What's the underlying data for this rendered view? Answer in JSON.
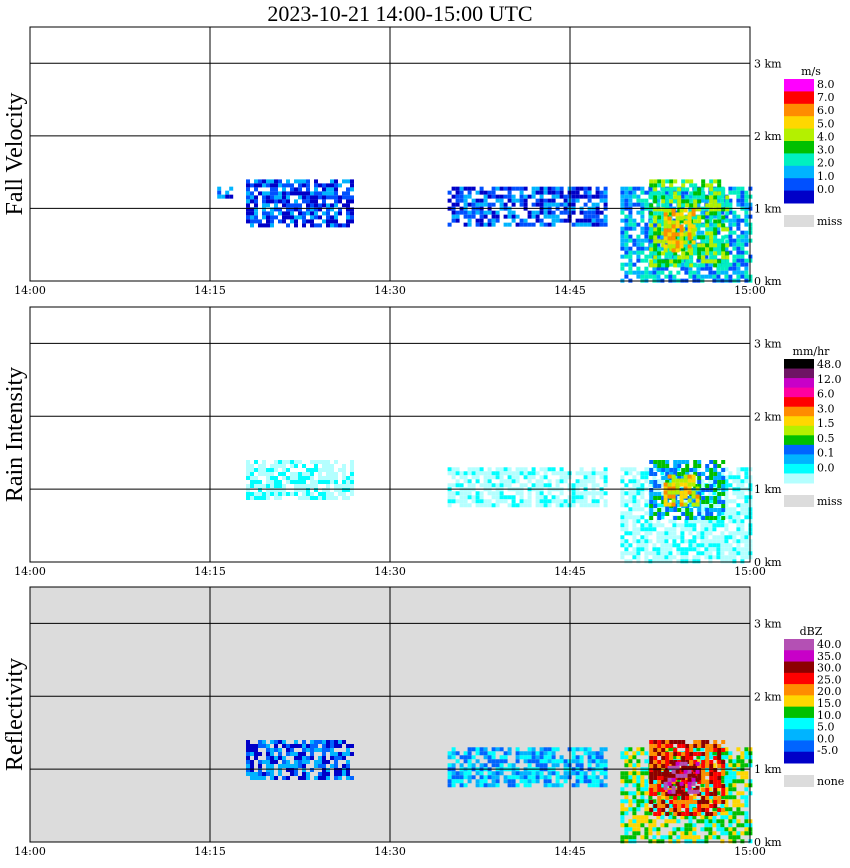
{
  "title": "2023-10-21   14:00-15:00 UTC",
  "chart_data": [
    {
      "type": "heatmap",
      "name": "fall-velocity",
      "ylabel": "Fall Velocity",
      "background": "#ffffff",
      "x_ticks": [
        "14:00",
        "14:15",
        "14:30",
        "14:45",
        "15:00"
      ],
      "y_ticks": [
        "0 km",
        "1 km",
        "2 km",
        "3 km"
      ],
      "xlim": [
        "14:00",
        "15:00"
      ],
      "ylim_km": [
        0,
        3.5
      ],
      "grid": true,
      "colorbar": {
        "unit": "m/s",
        "labels": [
          "8.0",
          "7.0",
          "6.0",
          "5.0",
          "4.0",
          "3.0",
          "2.0",
          "1.0",
          "0.0"
        ],
        "colors": [
          "#ff00ff",
          "#ff0000",
          "#ff8c00",
          "#ffd700",
          "#b4f000",
          "#00c000",
          "#00f0c0",
          "#00b4ff",
          "#0050ff",
          "#0000c8"
        ],
        "missing_label": "miss",
        "missing_color": "#dcdcdc"
      },
      "echo": [
        {
          "t0": 14.3,
          "t1": 14.45,
          "h0": 0.75,
          "h1": 1.4,
          "level": 1
        },
        {
          "t0": 14.26,
          "t1": 14.28,
          "h0": 1.15,
          "h1": 1.3,
          "level": 1
        },
        {
          "t0": 14.58,
          "t1": 14.8,
          "h0": 0.8,
          "h1": 1.3,
          "level": 1
        },
        {
          "t0": 14.82,
          "t1": 15.0,
          "h0": 0.0,
          "h1": 1.3,
          "level": 2
        },
        {
          "t0": 14.86,
          "t1": 14.97,
          "h0": 0.2,
          "h1": 1.4,
          "level": 4
        },
        {
          "t0": 14.88,
          "t1": 14.92,
          "h0": 0.4,
          "h1": 1.0,
          "level": 6
        }
      ]
    },
    {
      "type": "heatmap",
      "name": "rain-intensity",
      "ylabel": "Rain Intensity",
      "background": "#ffffff",
      "x_ticks": [
        "14:00",
        "14:15",
        "14:30",
        "14:45",
        "15:00"
      ],
      "y_ticks": [
        "0 km",
        "1 km",
        "2 km",
        "3 km"
      ],
      "xlim": [
        "14:00",
        "15:00"
      ],
      "ylim_km": [
        0,
        3.5
      ],
      "grid": true,
      "colorbar": {
        "unit": "mm/hr",
        "labels": [
          "48.0",
          "12.0",
          "6.0",
          "3.0",
          "1.5",
          "0.5",
          "0.1",
          "0.0"
        ],
        "colors": [
          "#000000",
          "#6e1464",
          "#c800c8",
          "#ff00a0",
          "#ff0000",
          "#ff8c00",
          "#ffd700",
          "#b4f000",
          "#00c000",
          "#0064ff",
          "#00b4ff",
          "#00ffff",
          "#b4ffff"
        ],
        "missing_label": "miss",
        "missing_color": "#dcdcdc"
      },
      "echo": [
        {
          "t0": 14.3,
          "t1": 14.45,
          "h0": 0.9,
          "h1": 1.4,
          "level": 0
        },
        {
          "t0": 14.58,
          "t1": 14.8,
          "h0": 0.8,
          "h1": 1.3,
          "level": 0
        },
        {
          "t0": 14.82,
          "t1": 15.0,
          "h0": 0.0,
          "h1": 1.3,
          "level": 0
        },
        {
          "t0": 14.86,
          "t1": 14.96,
          "h0": 0.6,
          "h1": 1.4,
          "level": 3
        },
        {
          "t0": 14.88,
          "t1": 14.93,
          "h0": 0.8,
          "h1": 1.2,
          "level": 6
        }
      ]
    },
    {
      "type": "heatmap",
      "name": "reflectivity",
      "ylabel": "Reflectivity",
      "background": "#dcdcdc",
      "x_ticks": [
        "14:00",
        "14:15",
        "14:30",
        "14:45",
        "15:00"
      ],
      "y_ticks": [
        "0 km",
        "1 km",
        "2 km",
        "3 km"
      ],
      "xlim": [
        "14:00",
        "15:00"
      ],
      "ylim_km": [
        0,
        3.5
      ],
      "grid": true,
      "colorbar": {
        "unit": "dBZ",
        "labels": [
          "40.0",
          "35.0",
          "30.0",
          "25.0",
          "20.0",
          "15.0",
          "10.0",
          "5.0",
          "0.0",
          "-5.0"
        ],
        "colors": [
          "#b450b4",
          "#c800c8",
          "#8c0000",
          "#ff0000",
          "#ff8c00",
          "#ffd700",
          "#00c000",
          "#00ffff",
          "#00b4ff",
          "#0064ff",
          "#0000c8"
        ],
        "missing_label": "none",
        "missing_color": "#dcdcdc"
      },
      "echo": [
        {
          "t0": 14.3,
          "t1": 14.45,
          "h0": 0.9,
          "h1": 1.4,
          "level": 1
        },
        {
          "t0": 14.58,
          "t1": 14.8,
          "h0": 0.8,
          "h1": 1.3,
          "level": 2
        },
        {
          "t0": 14.82,
          "t1": 15.0,
          "h0": 0.0,
          "h1": 1.3,
          "level": 4
        },
        {
          "t0": 14.86,
          "t1": 14.96,
          "h0": 0.4,
          "h1": 1.4,
          "level": 7
        },
        {
          "t0": 14.88,
          "t1": 14.93,
          "h0": 0.7,
          "h1": 1.1,
          "level": 9
        }
      ]
    }
  ]
}
